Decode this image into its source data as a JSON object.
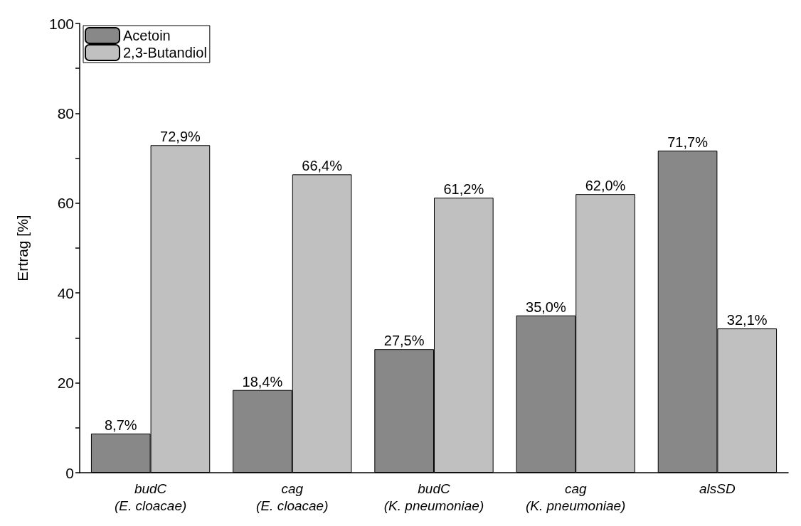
{
  "chart_data": {
    "type": "bar",
    "ylabel": "Ertrag [%]",
    "categories": [
      "budC\n(E. cloacae)",
      "cag\n(E. cloacae)",
      "budC\n(K. pneumoniae)",
      "cag\n(K. pneumoniae)",
      "alsSD"
    ],
    "series": [
      {
        "name": "Acetoin",
        "color": "#888888",
        "values": [
          8.7,
          18.4,
          27.5,
          35.0,
          71.7
        ],
        "value_labels": [
          "8,7%",
          "18,4%",
          "27,5%",
          "35,0%",
          "71,7%"
        ]
      },
      {
        "name": "2,3-Butandiol",
        "color": "#c0c0c0",
        "values": [
          72.9,
          66.4,
          61.2,
          62.0,
          32.1
        ],
        "value_labels": [
          "72,9%",
          "66,4%",
          "61,2%",
          "62,0%",
          "32,1%"
        ]
      }
    ],
    "ylim": [
      0,
      100
    ],
    "yticks": [
      0,
      {
        "value": 10,
        "label": null
      },
      20,
      {
        "value": 30,
        "label": null
      },
      40,
      {
        "value": 50,
        "label": null
      },
      60,
      {
        "value": 70,
        "label": null
      },
      80,
      {
        "value": 90,
        "label": null
      },
      100
    ],
    "grid": false,
    "legend": "top left"
  }
}
